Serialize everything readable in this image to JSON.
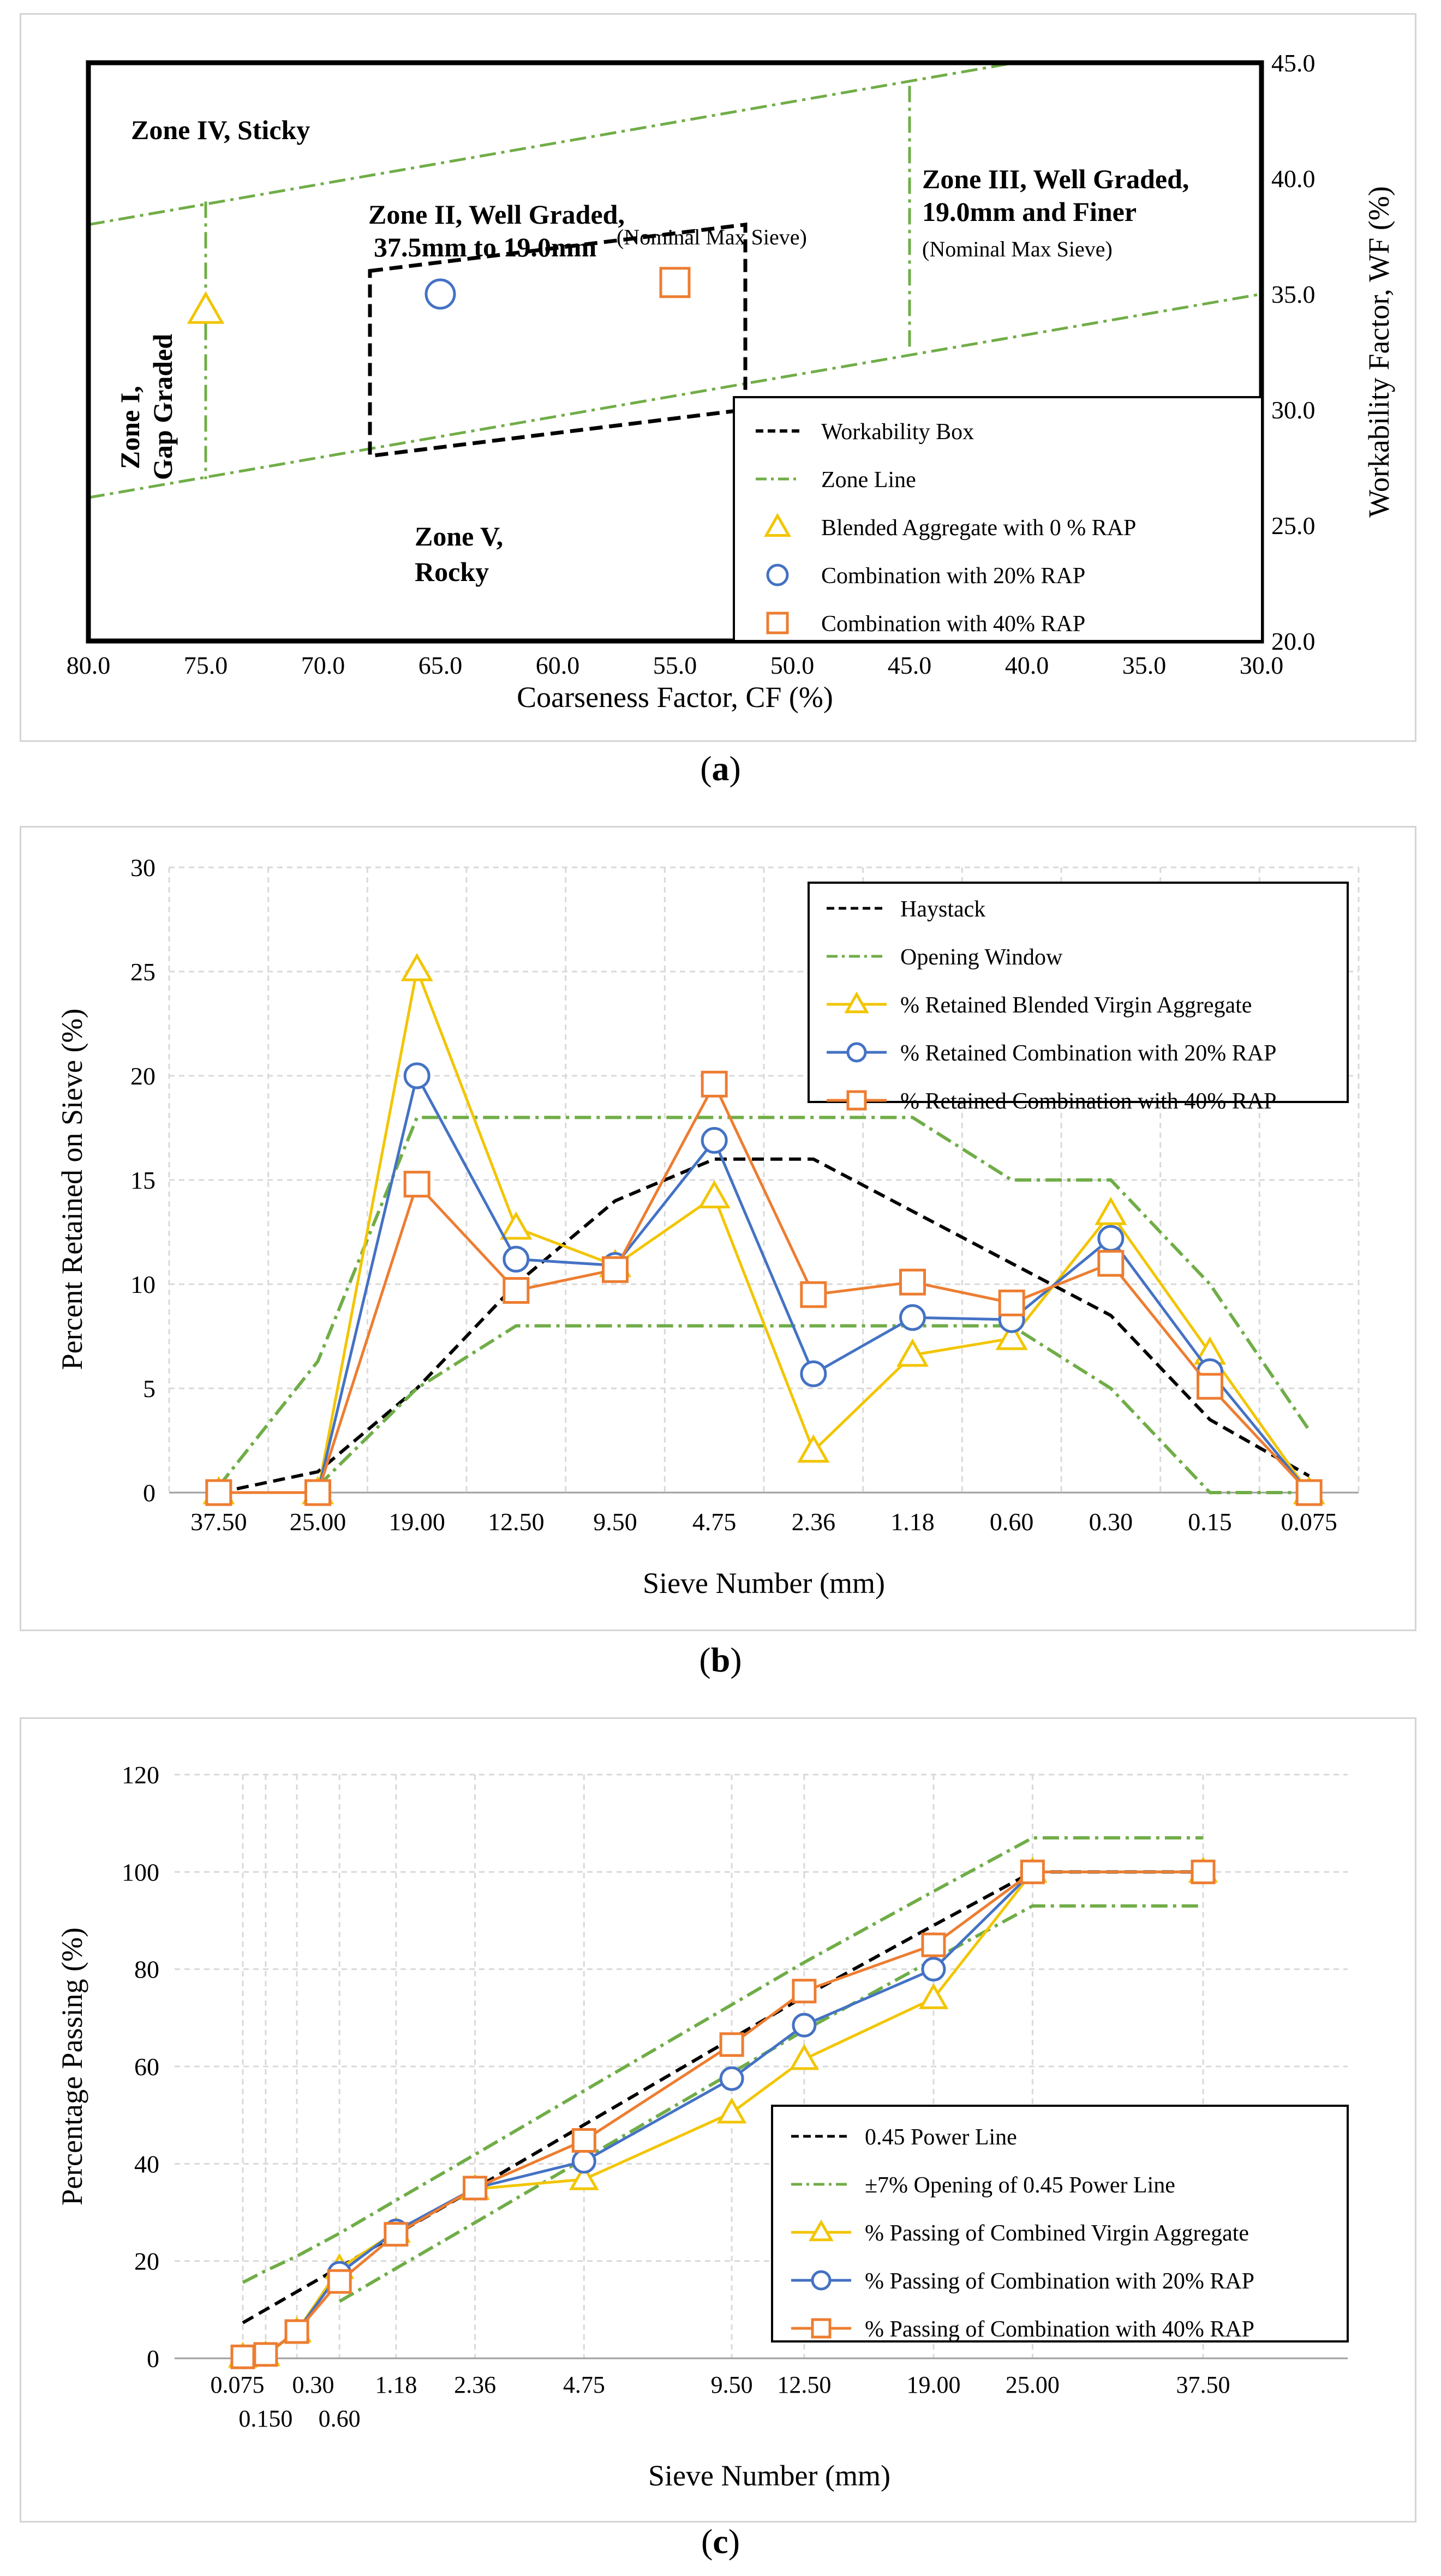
{
  "captions": [
    "(a)",
    "(b)",
    "(c)"
  ],
  "caption_letters": [
    "a",
    "b",
    "c"
  ],
  "chart_data": [
    {
      "type": "scatter",
      "title": "",
      "xlabel": "Coarseness Factor, CF (%)",
      "ylabel": "Workability Factor, WF (%)",
      "x_reversed": true,
      "xlim": [
        30.0,
        80.0
      ],
      "ylim": [
        20.0,
        45.0
      ],
      "x_ticks": [
        "80.0",
        "75.0",
        "70.0",
        "65.0",
        "60.0",
        "55.0",
        "50.0",
        "45.0",
        "40.0",
        "35.0",
        "30.0"
      ],
      "y_ticks": [
        "20.0",
        "25.0",
        "30.0",
        "35.0",
        "40.0",
        "45.0"
      ],
      "zone_labels": {
        "zone4": "Zone IV, Sticky",
        "zone2_line1": "Zone II, Well Graded,",
        "zone2_line2": "37.5mm to 19.0mm",
        "zone2_sub": "(Nominal Max Sieve)",
        "zone3_line1": "Zone III, Well Graded,",
        "zone3_line2": "19.0mm and Finer",
        "zone3_sub": "(Nominal Max  Sieve)",
        "zone1_line1": "Zone I,",
        "zone1_line2": "Gap Graded",
        "zone5_line1": "Zone V,",
        "zone5_line2": "Rocky"
      },
      "lines": [
        {
          "name": "Workability Box",
          "points": [
            [
              68,
              36
            ],
            [
              52,
              38
            ],
            [
              52,
              30
            ],
            [
              68,
              28
            ]
          ]
        },
        {
          "name": "Zone Line",
          "segments": [
            [
              [
                80,
                38
              ],
              [
                40.5,
                45
              ]
            ],
            [
              [
                80,
                26.2
              ],
              [
                30,
                35
              ]
            ],
            [
              [
                75,
                39
              ],
              [
                75,
                27
              ]
            ],
            [
              [
                45,
                44
              ],
              [
                45,
                32.5
              ]
            ]
          ]
        }
      ],
      "series": [
        {
          "name": "Blended Aggregate with 0 % RAP",
          "marker": "triangle",
          "color": "#f2c500",
          "x": [
            75.0
          ],
          "y": [
            34.3
          ]
        },
        {
          "name": "Combination with 20% RAP",
          "marker": "circle",
          "color": "#4472c4",
          "x": [
            65.0
          ],
          "y": [
            35.0
          ]
        },
        {
          "name": "Combination with 40% RAP",
          "marker": "square",
          "color": "#ed7d31",
          "x": [
            55.0
          ],
          "y": [
            35.5
          ]
        }
      ],
      "legend": [
        "Workability Box",
        "Zone Line",
        "Blended Aggregate with 0 % RAP",
        "Combination with 20% RAP",
        "Combination with 40% RAP"
      ],
      "legend_position": "bottom-right"
    },
    {
      "type": "line",
      "title": "",
      "xlabel": "Sieve Number (mm)",
      "ylabel": "Percent Retained on Sieve (%)",
      "categories": [
        "37.50",
        "25.00",
        "19.00",
        "12.50",
        "9.50",
        "4.75",
        "2.36",
        "1.18",
        "0.60",
        "0.30",
        "0.15",
        "0.075"
      ],
      "ylim": [
        0,
        30
      ],
      "y_ticks": [
        "0",
        "5",
        "10",
        "15",
        "20",
        "25",
        "30"
      ],
      "series": [
        {
          "name": "Haystack",
          "style": "dash",
          "color": "#000000",
          "values": [
            0,
            1,
            5,
            10,
            14,
            16,
            16,
            13.5,
            11,
            8.5,
            3.5,
            0.8
          ]
        },
        {
          "name": "Opening Window",
          "style": "dashdot",
          "color": "#70ad47",
          "values": [
            0.3,
            6.3,
            18,
            18,
            18,
            18,
            18,
            18,
            15,
            15,
            10,
            3
          ]
        },
        {
          "name": "Opening Window (lower)",
          "style": "dashdot",
          "color": "#70ad47",
          "legend": false,
          "values": [
            null,
            0.3,
            5,
            8,
            8,
            8,
            8,
            8,
            8,
            5,
            0,
            0
          ]
        },
        {
          "name": "% Retained Blended Virgin Aggregate",
          "marker": "triangle",
          "color": "#f2c500",
          "values": [
            0,
            0,
            25.1,
            12.7,
            10.9,
            14.2,
            2.0,
            6.6,
            7.4,
            13.4,
            6.7,
            0
          ]
        },
        {
          "name": "% Retained Combination with 20% RAP",
          "marker": "circle",
          "color": "#4472c4",
          "values": [
            0,
            0,
            20,
            11.2,
            10.9,
            16.9,
            5.7,
            8.4,
            8.3,
            12.2,
            5.8,
            0
          ]
        },
        {
          "name": "% Retained Combination with 40% RAP",
          "marker": "square",
          "color": "#ed7d31",
          "values": [
            0,
            0,
            14.8,
            9.7,
            10.7,
            19.6,
            9.5,
            10.1,
            9.1,
            11.0,
            5.1,
            0
          ]
        }
      ],
      "legend": [
        "Haystack",
        "Opening Window",
        "% Retained Blended Virgin Aggregate",
        "% Retained Combination with 20% RAP",
        "% Retained Combination with 40% RAP"
      ],
      "legend_position": "top-right"
    },
    {
      "type": "line",
      "title": "",
      "xlabel": "Sieve Number (mm)",
      "ylabel": "Percentage Passing (%)",
      "x_scale": "0.45 power",
      "x": [
        0.075,
        0.15,
        0.3,
        0.6,
        1.18,
        2.36,
        4.75,
        9.5,
        12.5,
        19.0,
        25.0,
        37.5
      ],
      "x_tick_labels": [
        "0.075",
        "0.150",
        "0.30",
        "0.60",
        "1.18",
        "2.36",
        "4.75",
        "9.50",
        "12.50",
        "19.00",
        "25.00",
        "37.50"
      ],
      "ylim": [
        0,
        120
      ],
      "y_ticks": [
        "0",
        "20",
        "40",
        "60",
        "80",
        "100",
        "120"
      ],
      "series": [
        {
          "name": "0.45 Power Line",
          "style": "dash",
          "color": "#000000",
          "values": [
            7.3,
            10.0,
            13.7,
            18.7,
            25.5,
            34.9,
            48.0,
            65.7,
            74.4,
            89.0,
            100,
            100
          ]
        },
        {
          "name": "±7% Opening of 0.45 Power Line",
          "style": "dashdot",
          "color": "#70ad47",
          "values": [
            15.6,
            18.0,
            21.0,
            25.7,
            32.5,
            41.9,
            55.0,
            72.7,
            81.4,
            96.0,
            107,
            107
          ]
        },
        {
          "name": "±7% Opening of 0.45 Power Line (lower)",
          "style": "dashdot",
          "color": "#70ad47",
          "legend": false,
          "values": [
            null,
            null,
            null,
            11.7,
            18.5,
            27.9,
            41.0,
            58.7,
            67.4,
            82.0,
            93,
            93
          ]
        },
        {
          "name": "% Passing of Combined Virgin Aggregate",
          "marker": "triangle",
          "color": "#f2c500",
          "values": [
            0.3,
            0.6,
            5.5,
            18.5,
            26.0,
            34.8,
            36.8,
            50.5,
            61.5,
            74.0,
            100,
            100
          ]
        },
        {
          "name": "% Passing of Combination with 20% RAP",
          "marker": "circle",
          "color": "#4472c4",
          "values": [
            0.3,
            0.8,
            5.5,
            17.5,
            26.2,
            35.0,
            40.5,
            57.5,
            68.5,
            80.0,
            100,
            100
          ]
        },
        {
          "name": "% Passing of Combination with 40% RAP",
          "marker": "square",
          "color": "#ed7d31",
          "values": [
            0.3,
            0.8,
            5.5,
            15.8,
            25.5,
            35.0,
            44.8,
            64.5,
            75.5,
            85.0,
            100,
            100
          ]
        }
      ],
      "legend": [
        "0.45 Power Line",
        "±7% Opening of 0.45 Power Line",
        "% Passing of Combined Virgin Aggregate",
        "% Passing of Combination with 20% RAP",
        "% Passing of Combination with 40% RAP"
      ],
      "legend_position": "bottom-right"
    }
  ]
}
